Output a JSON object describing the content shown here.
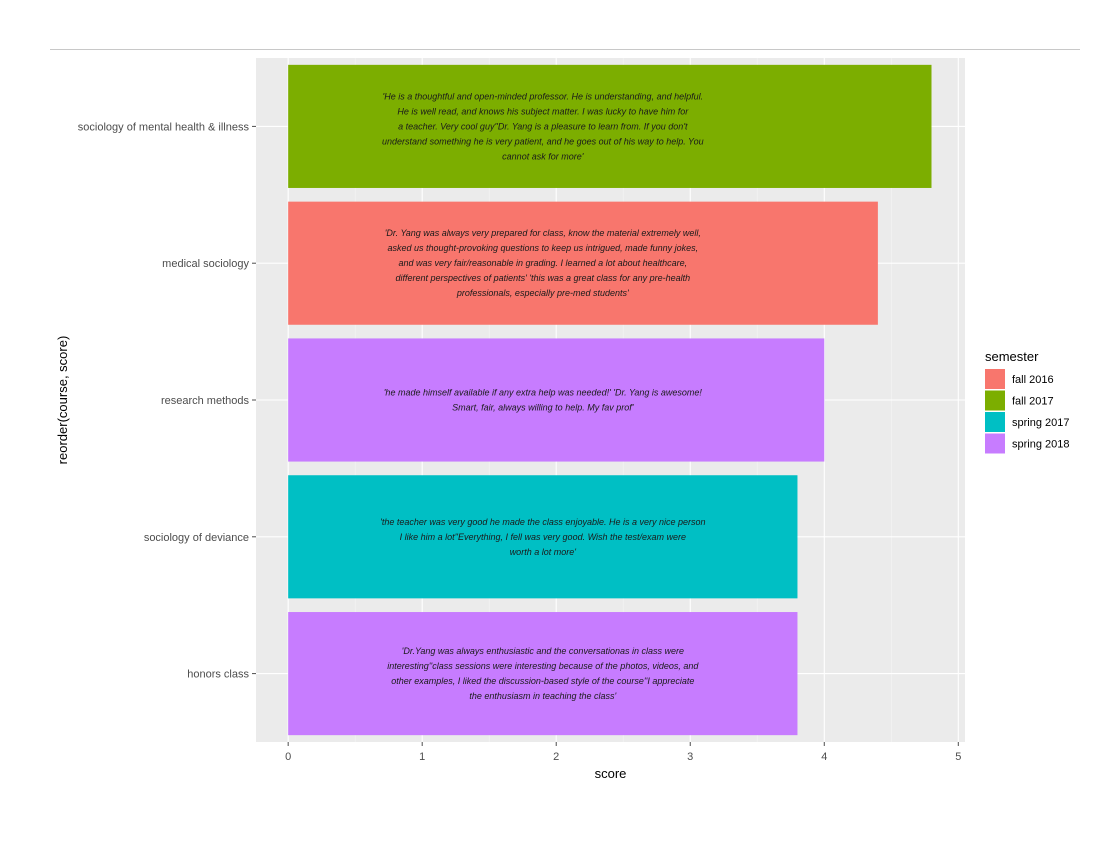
{
  "chart_data": {
    "type": "bar",
    "orientation": "horizontal",
    "xlabel": "score",
    "ylabel": "reorder(course, score)",
    "xlim": [
      -0.24,
      5.05
    ],
    "xticks": [
      0,
      1,
      2,
      3,
      4,
      5
    ],
    "grid": true,
    "legend": {
      "title": "semester",
      "placement": "right",
      "entries": [
        {
          "label": "fall 2016",
          "color": "#F8766D"
        },
        {
          "label": "fall 2017",
          "color": "#7CAE00"
        },
        {
          "label": "spring 2017",
          "color": "#00BFC4"
        },
        {
          "label": "spring 2018",
          "color": "#C77CFF"
        }
      ]
    },
    "bars": [
      {
        "course": "sociology of mental health & illness",
        "score": 4.8,
        "semester": "fall 2017",
        "comment_lines": [
          "'He is a thoughtful and open-minded professor. He is understanding, and helpful.",
          "He is well read, and knows his subject matter. I was lucky to have him for",
          "a teacher. Very cool guy''Dr. Yang is a pleasure to learn from. If you don't",
          "understand something he is very patient, and he goes out of his way to help. You",
          "cannot ask for more'"
        ]
      },
      {
        "course": "medical sociology",
        "score": 4.4,
        "semester": "fall 2016",
        "comment_lines": [
          "'Dr. Yang was always very prepared for class, know the material extremely well,",
          "asked us thought-provoking questions to keep us intrigued, made funny jokes,",
          "and was very fair/reasonable in grading. I learned a lot about healthcare,",
          "different perspectives of patients' 'this was a great class for any pre-health",
          "professionals, especially pre-med students'"
        ]
      },
      {
        "course": "research methods",
        "score": 4.0,
        "semester": "spring 2018",
        "comment_lines": [
          "'he made himself available if any extra help was needed!' 'Dr. Yang is awesome!",
          "Smart, fair, always willing to help. My fav prof'"
        ]
      },
      {
        "course": "sociology of deviance",
        "score": 3.8,
        "semester": "spring 2017",
        "comment_lines": [
          "'the teacher was very good he made the class enjoyable. He is a very nice person",
          "I like him a lot''Everything, I fell was very good. Wish the test/exam were",
          "worth a lot more'"
        ]
      },
      {
        "course": "honors class",
        "score": 3.8,
        "semester": "spring 2018",
        "comment_lines": [
          "'Dr.Yang was always enthusiastic and the conversationas in class were",
          "interesting''class sessions were interesting because of the photos, videos, and",
          "other examples, I liked the discussion-based style of the course''I appreciate",
          "the enthusiasm in teaching the class'"
        ]
      }
    ]
  }
}
